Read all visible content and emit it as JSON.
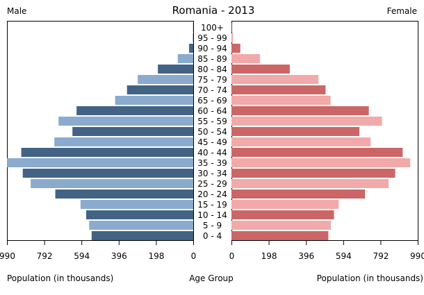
{
  "chart_data": {
    "type": "bar",
    "title": "Romania - 2013",
    "left_label": "Male",
    "right_label": "Female",
    "xlabel_left": "Population (in thousands)",
    "xlabel_center": "Age Group",
    "xlabel_right": "Population (in thousands)",
    "xlim": [
      0,
      990
    ],
    "ticks": [
      "990",
      "792",
      "594",
      "396",
      "198",
      "0"
    ],
    "ticks_right": [
      "0",
      "198",
      "396",
      "594",
      "792",
      "990"
    ],
    "categories": [
      "100+",
      "95 - 99",
      "90 - 94",
      "85 - 89",
      "80 - 84",
      "75 - 79",
      "70 - 74",
      "65 - 69",
      "60 - 64",
      "55 - 59",
      "50 - 54",
      "45 - 49",
      "40 - 44",
      "35 - 39",
      "30 - 34",
      "25 - 29",
      "20 - 24",
      "15 - 19",
      "10 - 14",
      "5 - 9",
      "0 - 4"
    ],
    "series": [
      {
        "name": "Male",
        "values": [
          1,
          3,
          22,
          82,
          188,
          295,
          352,
          415,
          620,
          716,
          642,
          738,
          914,
          990,
          906,
          864,
          733,
          599,
          569,
          553,
          540
        ]
      },
      {
        "name": "Female",
        "values": [
          2,
          8,
          47,
          152,
          310,
          462,
          500,
          527,
          730,
          800,
          680,
          740,
          910,
          950,
          870,
          835,
          710,
          570,
          545,
          528,
          515
        ]
      }
    ],
    "colors": {
      "male_dark": "#436385",
      "male_light": "#8aabce",
      "female_dark": "#cc6666",
      "female_light": "#f2a9a9"
    }
  }
}
